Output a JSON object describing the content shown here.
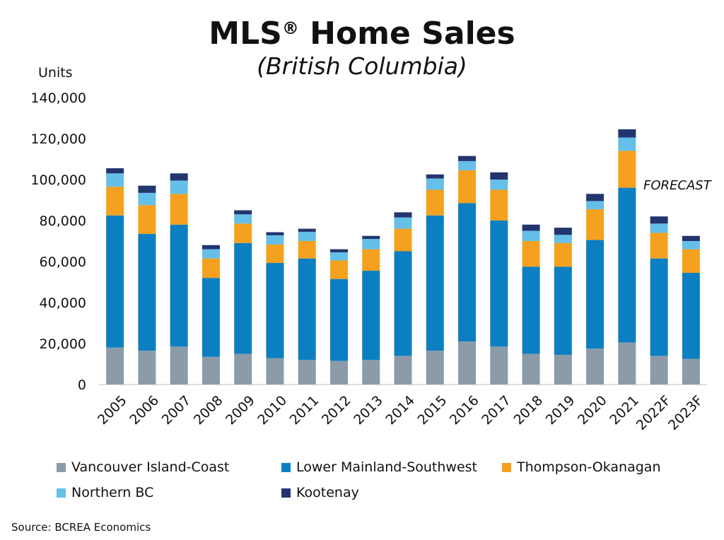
{
  "title": "MLS",
  "title_mark": "®",
  "title_rest": " Home Sales",
  "subtitle": "(British Columbia)",
  "source": "Source: BCREA Economics",
  "annotation": "FORECAST",
  "chart_data": {
    "type": "bar",
    "stacked": true,
    "ylabel": "Units",
    "ylim": [
      0,
      140000
    ],
    "yticks": [
      "0",
      "20,000",
      "40,000",
      "60,000",
      "80,000",
      "100,000",
      "120,000",
      "140,000"
    ],
    "categories": [
      "2005",
      "2006",
      "2007",
      "2008",
      "2009",
      "2010",
      "2011",
      "2012",
      "2013",
      "2014",
      "2015",
      "2016",
      "2017",
      "2018",
      "2019",
      "2020",
      "2021",
      "2022F",
      "2023F"
    ],
    "legend_position": "bottom",
    "series": [
      {
        "name": "Vancouver Island-Coast",
        "color": "#8c9ba8",
        "values": [
          18000,
          16500,
          18500,
          13500,
          15000,
          12800,
          12000,
          11500,
          12000,
          14000,
          16500,
          21000,
          18500,
          15000,
          14500,
          17500,
          20500,
          14000,
          12500
        ]
      },
      {
        "name": "Lower Mainland-Southwest",
        "color": "#0b7fc1",
        "values": [
          64500,
          57000,
          59500,
          38500,
          54000,
          46500,
          49500,
          40000,
          43500,
          51000,
          66000,
          67500,
          61500,
          42500,
          43000,
          53000,
          75500,
          47500,
          42000
        ]
      },
      {
        "name": "Thompson-Okanagan",
        "color": "#f5a11f",
        "values": [
          14000,
          14000,
          15000,
          9500,
          9500,
          9000,
          8500,
          9000,
          10500,
          11000,
          12500,
          16000,
          15000,
          12500,
          11500,
          15000,
          18000,
          12500,
          11500
        ]
      },
      {
        "name": "Northern BC",
        "color": "#66bfe8",
        "values": [
          6500,
          6000,
          6500,
          4500,
          4500,
          4500,
          4500,
          4000,
          5000,
          5500,
          5500,
          4500,
          5000,
          5000,
          4000,
          4000,
          6500,
          4500,
          4000
        ]
      },
      {
        "name": "Kootenay",
        "color": "#22356e",
        "values": [
          2500,
          3500,
          3500,
          2000,
          2000,
          1500,
          1500,
          1500,
          1500,
          2500,
          2000,
          2500,
          3500,
          3000,
          3500,
          3500,
          4000,
          3500,
          2500
        ]
      }
    ]
  }
}
